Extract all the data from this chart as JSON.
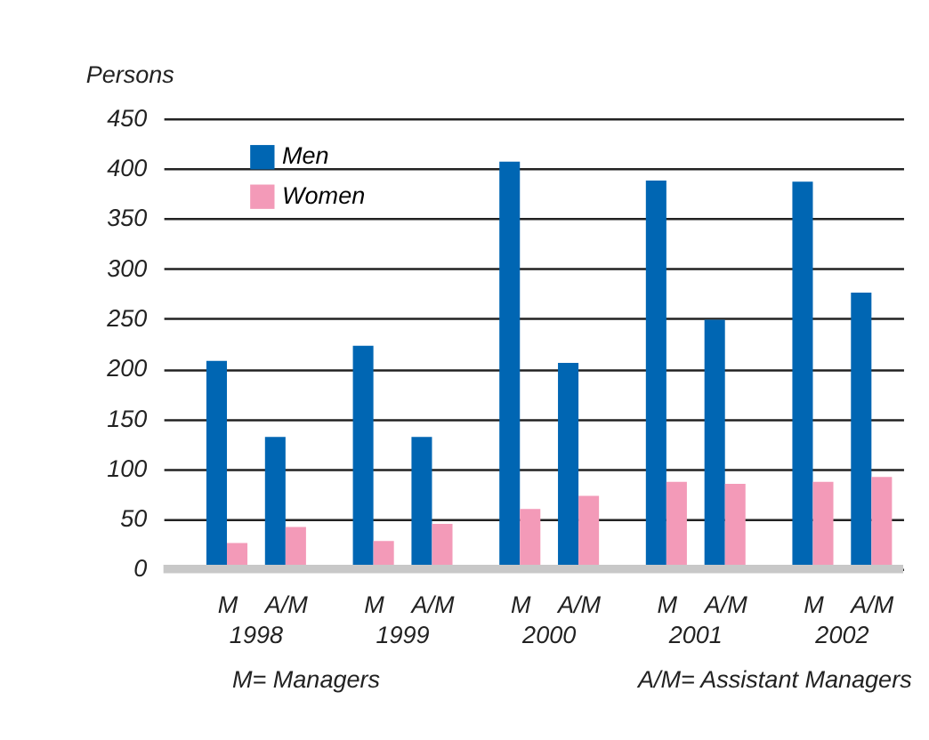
{
  "chart_data": {
    "type": "bar",
    "ylabel": "Persons",
    "categories": [
      "M",
      "A/M",
      "M",
      "A/M",
      "M",
      "A/M",
      "M",
      "A/M",
      "M",
      "A/M"
    ],
    "series": [
      {
        "name": "Men",
        "color": "#0066b3",
        "values": [
          208,
          132,
          223,
          132,
          407,
          206,
          388,
          249,
          387,
          276
        ]
      },
      {
        "name": "Women",
        "color": "#f39ab8",
        "values": [
          26,
          42,
          28,
          45,
          60,
          73,
          87,
          85,
          87,
          92
        ]
      }
    ],
    "ylim": [
      0,
      450
    ],
    "yticks": [
      0,
      50,
      100,
      150,
      200,
      250,
      300,
      350,
      400,
      450
    ],
    "grid": "y",
    "legend": "top left",
    "annotations": [
      "1998",
      "1999",
      "2000",
      "2001",
      "2002",
      "M= Managers",
      "A/M= Assistant Managers"
    ]
  }
}
